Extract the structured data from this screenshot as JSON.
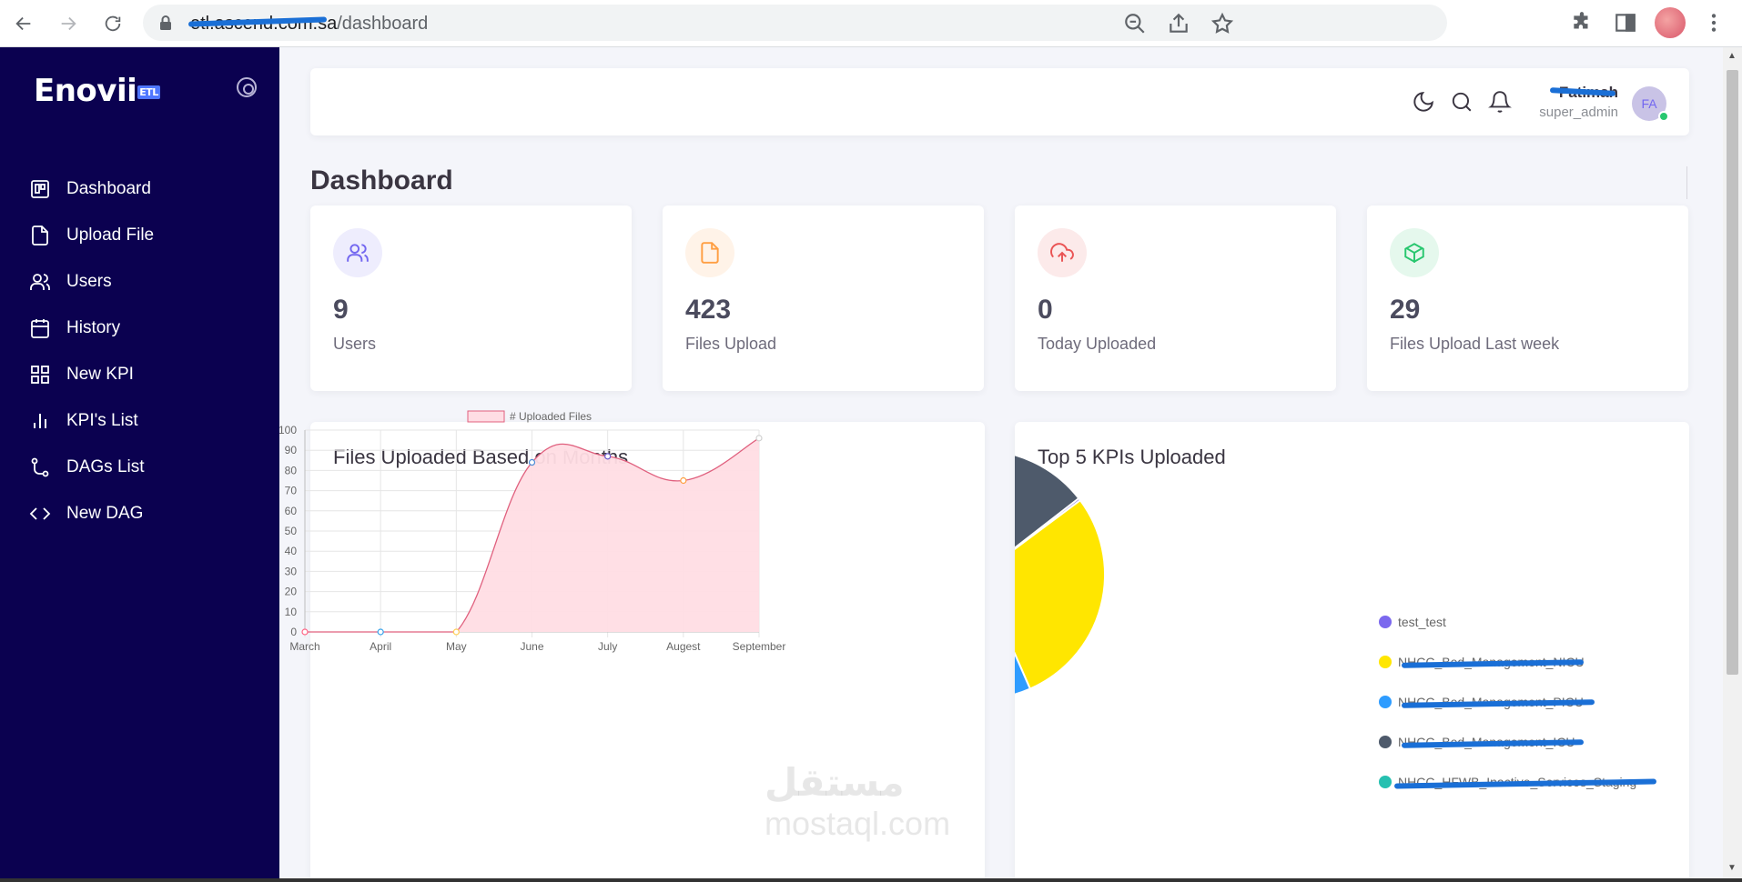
{
  "browser": {
    "url_host": "etl.ascend.com.sa",
    "url_path": "/dashboard"
  },
  "sidebar": {
    "logo": "Enovii",
    "logo_badge": "ETL",
    "items": [
      {
        "label": "Dashboard",
        "icon": "dashboard-icon"
      },
      {
        "label": "Upload File",
        "icon": "file-icon"
      },
      {
        "label": "Users",
        "icon": "users-icon"
      },
      {
        "label": "History",
        "icon": "calendar-icon"
      },
      {
        "label": "New KPI",
        "icon": "grid-icon"
      },
      {
        "label": "KPI's List",
        "icon": "bar-chart-icon"
      },
      {
        "label": "DAGs List",
        "icon": "git-branch-icon"
      },
      {
        "label": "New DAG",
        "icon": "code-icon"
      }
    ]
  },
  "header": {
    "user_name": "Fatimah",
    "user_role": "super_admin",
    "avatar_initials": "FA"
  },
  "page": {
    "title": "Dashboard"
  },
  "stats": [
    {
      "value": "9",
      "label": "Users",
      "icon": "users-icon",
      "color": "#7367f0",
      "bg": "#eeedfd"
    },
    {
      "value": "423",
      "label": "Files Upload",
      "icon": "file-icon",
      "color": "#ff9f43",
      "bg": "#fff3e8"
    },
    {
      "value": "0",
      "label": "Today Uploaded",
      "icon": "upload-cloud-icon",
      "color": "#ea5455",
      "bg": "#fceaea"
    },
    {
      "value": "29",
      "label": "Files Upload Last week",
      "icon": "package-icon",
      "color": "#28c76f",
      "bg": "#e5f8ed"
    }
  ],
  "charts": {
    "line_title": "Files Uploaded Based on Months",
    "pie_title": "Top 5 KPIs Uploaded"
  },
  "chart_data": [
    {
      "type": "area",
      "title": "Files Uploaded Based on Months",
      "categories": [
        "March",
        "April",
        "May",
        "June",
        "July",
        "Augest",
        "September"
      ],
      "series": [
        {
          "name": "# Uploaded Files",
          "values": [
            0,
            0,
            0,
            84,
            87,
            75,
            96
          ]
        }
      ],
      "ylim": [
        0,
        100
      ],
      "yticks": [
        0,
        10,
        20,
        30,
        40,
        50,
        60,
        70,
        80,
        90,
        100
      ],
      "legend": "top",
      "grid": true,
      "fill_color": "#ffdde4",
      "line_color": "#e0607e"
    },
    {
      "type": "pie",
      "title": "Top 5 KPIs Uploaded",
      "legend": "right",
      "slices": [
        {
          "label": "test_test",
          "value": 0.3,
          "color": "#7b68ee"
        },
        {
          "label": "NHCC_Bed_Management_NICU",
          "value": 27,
          "color": "#ffe600"
        },
        {
          "label": "NHCC_Bed_Management_PICU",
          "value": 36,
          "color": "#2e9cff"
        },
        {
          "label": "NHCC_Bed_Management_ICU",
          "value": 31,
          "color": "#4e5a6b"
        },
        {
          "label": "NHCC_HFWB_Inactive_Services_Staging",
          "value": 0,
          "color": "#26c0b0"
        }
      ]
    }
  ],
  "watermark": {
    "arabic": "مستقل",
    "latin": "mostaql.com"
  }
}
